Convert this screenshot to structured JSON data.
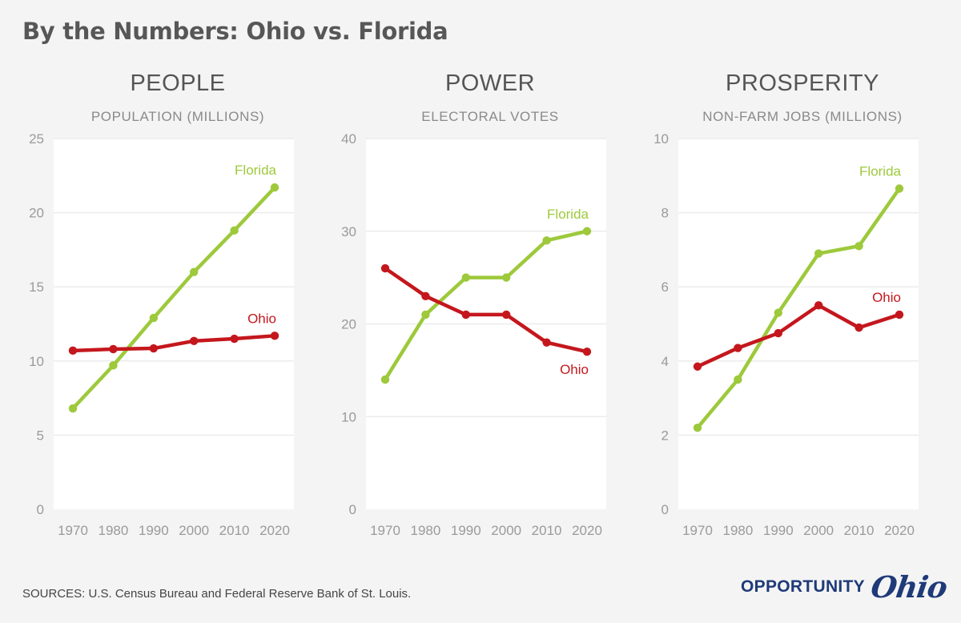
{
  "page": {
    "title": "By the Numbers: Ohio vs. Florida"
  },
  "footer": {
    "sources": "SOURCES: U.S. Census Bureau and Federal Reserve Bank of St. Louis.",
    "brand_word": "OPPORTUNITY",
    "brand_script": "Ohio"
  },
  "colors": {
    "florida": "#9dc93b",
    "ohio": "#c4171d",
    "plot_bg": "#ffffff",
    "grid": "#ececec"
  },
  "panels": [
    {
      "title": "PEOPLE",
      "subtitle": "POPULATION (MILLIONS)"
    },
    {
      "title": "POWER",
      "subtitle": "ELECTORAL VOTES"
    },
    {
      "title": "PROSPERITY",
      "subtitle": "NON-FARM JOBS (MILLIONS)"
    }
  ],
  "chart_data": [
    {
      "type": "line",
      "title": "PEOPLE",
      "subtitle": "POPULATION (MILLIONS)",
      "x": [
        1970,
        1980,
        1990,
        2000,
        2010,
        2020
      ],
      "ylim": [
        0,
        25
      ],
      "yticks": [
        0,
        5,
        10,
        15,
        20,
        25
      ],
      "grid": true,
      "series": [
        {
          "name": "Florida",
          "color": "#9dc93b",
          "values": [
            6.8,
            9.7,
            12.9,
            16.0,
            18.8,
            21.7
          ]
        },
        {
          "name": "Ohio",
          "color": "#c4171d",
          "values": [
            10.7,
            10.8,
            10.85,
            11.35,
            11.5,
            11.7
          ]
        }
      ]
    },
    {
      "type": "line",
      "title": "POWER",
      "subtitle": "ELECTORAL VOTES",
      "x": [
        1970,
        1980,
        1990,
        2000,
        2010,
        2020
      ],
      "ylim": [
        0,
        40
      ],
      "yticks": [
        0,
        10,
        20,
        30,
        40
      ],
      "grid": true,
      "series": [
        {
          "name": "Florida",
          "color": "#9dc93b",
          "values": [
            14,
            21,
            25,
            25,
            29,
            30
          ]
        },
        {
          "name": "Ohio",
          "color": "#c4171d",
          "values": [
            26,
            23,
            21,
            21,
            18,
            17
          ]
        }
      ]
    },
    {
      "type": "line",
      "title": "PROSPERITY",
      "subtitle": "NON-FARM JOBS (MILLIONS)",
      "x": [
        1970,
        1980,
        1990,
        2000,
        2010,
        2020
      ],
      "ylim": [
        0,
        10
      ],
      "yticks": [
        0,
        2,
        4,
        6,
        8,
        10
      ],
      "grid": true,
      "series": [
        {
          "name": "Florida",
          "color": "#9dc93b",
          "values": [
            2.2,
            3.5,
            5.3,
            6.9,
            7.1,
            8.65
          ]
        },
        {
          "name": "Ohio",
          "color": "#c4171d",
          "values": [
            3.85,
            4.35,
            4.75,
            5.5,
            4.9,
            5.25
          ]
        }
      ]
    }
  ]
}
